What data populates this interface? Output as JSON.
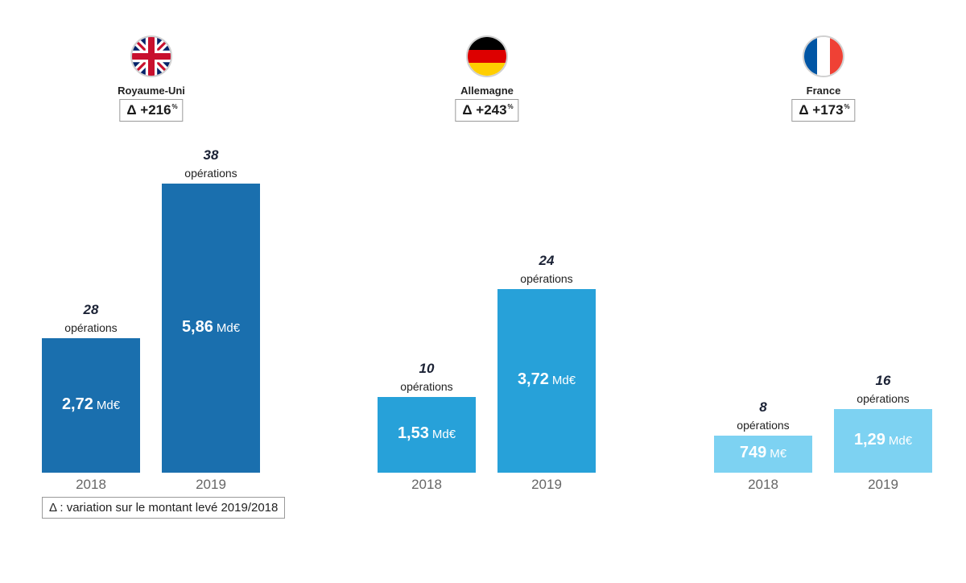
{
  "chart_data": {
    "type": "bar",
    "title": "",
    "categories": [
      "2018",
      "2019"
    ],
    "groups": [
      {
        "country": "Royaume-Uni",
        "flag": "uk-flag-icon",
        "delta": "Δ +216",
        "delta_unit": "%",
        "color": "#1a6fae",
        "bars": [
          {
            "year": "2018",
            "amount": "2,72",
            "unit": "Md€",
            "value_bn": 2.72,
            "operations": "28",
            "operations_label": "opérations"
          },
          {
            "year": "2019",
            "amount": "5,86",
            "unit": "Md€",
            "value_bn": 5.86,
            "operations": "38",
            "operations_label": "opérations"
          }
        ]
      },
      {
        "country": "Allemagne",
        "flag": "germany-flag-icon",
        "delta": "Δ +243",
        "delta_unit": "%",
        "color": "#27a1d9",
        "bars": [
          {
            "year": "2018",
            "amount": "1,53",
            "unit": "Md€",
            "value_bn": 1.53,
            "operations": "10",
            "operations_label": "opérations"
          },
          {
            "year": "2019",
            "amount": "3,72",
            "unit": "Md€",
            "value_bn": 3.72,
            "operations": "24",
            "operations_label": "opérations"
          }
        ]
      },
      {
        "country": "France",
        "flag": "france-flag-icon",
        "delta": "Δ +173",
        "delta_unit": "%",
        "color": "#7dd2f2",
        "bars": [
          {
            "year": "2018",
            "amount": "749",
            "unit": "M€",
            "value_bn": 0.749,
            "operations": "8",
            "operations_label": "opérations"
          },
          {
            "year": "2019",
            "amount": "1,29",
            "unit": "Md€",
            "value_bn": 1.29,
            "operations": "16",
            "operations_label": "opérations"
          }
        ]
      }
    ],
    "note": "Δ : variation sur le montant levé 2019/2018"
  }
}
